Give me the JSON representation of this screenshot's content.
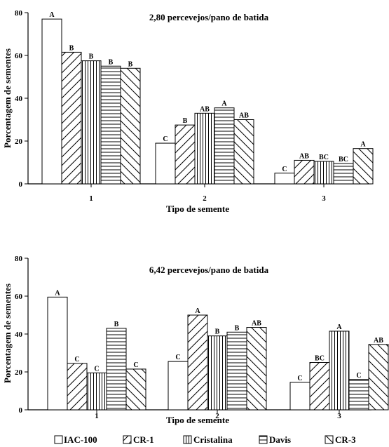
{
  "chart_data": [
    {
      "type": "bar",
      "title": "2,80 percevejos/pano de batida",
      "xlabel": "Tipo de semente",
      "ylabel": "Porcentagem de sementes",
      "ylim": [
        0,
        80
      ],
      "yticks": [
        0,
        20,
        40,
        60,
        80
      ],
      "grid": false,
      "categories": [
        "1",
        "2",
        "3"
      ],
      "series": [
        {
          "name": "IAC-100",
          "values": [
            77,
            19,
            5
          ],
          "labels": [
            "A",
            "C",
            "C"
          ]
        },
        {
          "name": "CR-1",
          "values": [
            61.5,
            27.5,
            11
          ],
          "labels": [
            "B",
            "B",
            "AB"
          ]
        },
        {
          "name": "Cristalina",
          "values": [
            57.5,
            33,
            10.5
          ],
          "labels": [
            "B",
            "AB",
            "BC"
          ]
        },
        {
          "name": "Davis",
          "values": [
            55,
            35.5,
            9.5
          ],
          "labels": [
            "B",
            "A",
            "BC"
          ]
        },
        {
          "name": "CR-3",
          "values": [
            54,
            30,
            16.5
          ],
          "labels": [
            "B",
            "AB",
            "A"
          ]
        }
      ]
    },
    {
      "type": "bar",
      "title": "6,42 percevejos/pano de batida",
      "xlabel": "Tipo de semente",
      "ylabel": "Porcentagem de sementes",
      "ylim": [
        0,
        80
      ],
      "yticks": [
        0,
        20,
        40,
        60,
        80
      ],
      "grid": false,
      "categories": [
        "1",
        "2",
        "3"
      ],
      "series": [
        {
          "name": "IAC-100",
          "values": [
            59.5,
            25.5,
            14.5
          ],
          "labels": [
            "A",
            "C",
            "C"
          ]
        },
        {
          "name": "CR-1",
          "values": [
            24.5,
            50,
            25
          ],
          "labels": [
            "C",
            "A",
            "BC"
          ]
        },
        {
          "name": "Cristalina",
          "values": [
            19.5,
            39,
            41.5
          ],
          "labels": [
            "C",
            "B",
            "A"
          ]
        },
        {
          "name": "Davis",
          "values": [
            43,
            41,
            16
          ],
          "labels": [
            "B",
            "B",
            "C"
          ]
        },
        {
          "name": "CR-3",
          "values": [
            21.5,
            43.5,
            34.5
          ],
          "labels": [
            "C",
            "AB",
            "AB"
          ]
        }
      ]
    }
  ],
  "legend": {
    "position": "bottom",
    "items": [
      {
        "label": "IAC-100",
        "pattern": "blank"
      },
      {
        "label": "CR-1",
        "pattern": "diagonal-up"
      },
      {
        "label": "Cristalina",
        "pattern": "vertical"
      },
      {
        "label": "Davis",
        "pattern": "horizontal"
      },
      {
        "label": "CR-3",
        "pattern": "diagonal-down"
      }
    ]
  }
}
